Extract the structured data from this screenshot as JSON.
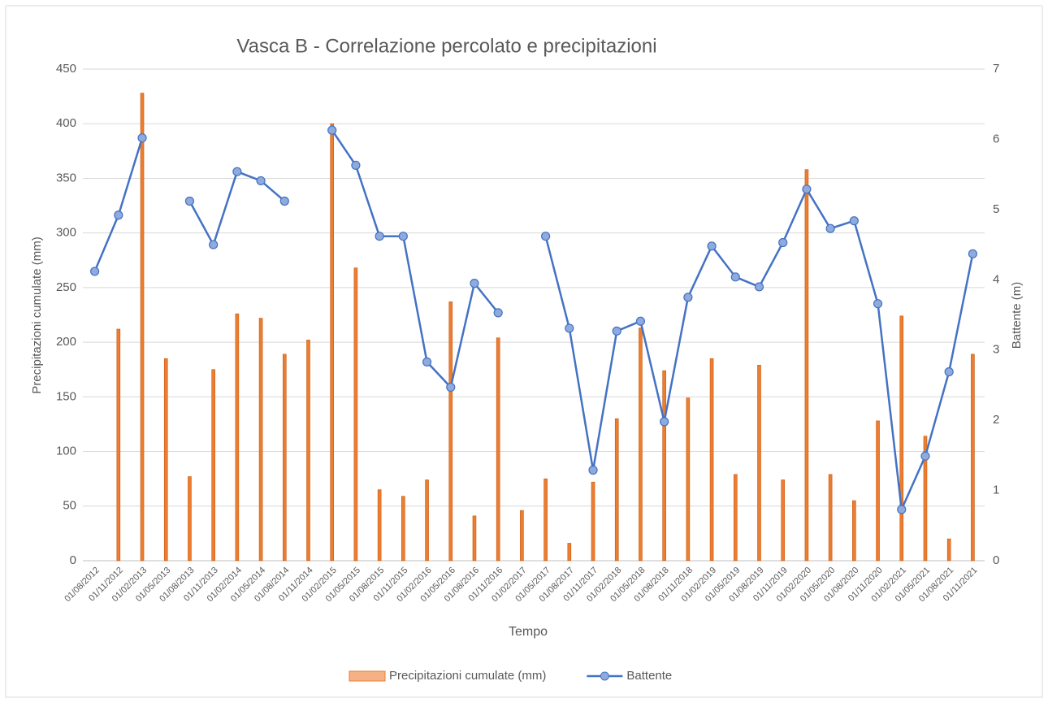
{
  "chart_data": {
    "type": "bar_line",
    "title": "Vasca B - Correlazione percolato e precipitazioni",
    "x_label": "Tempo",
    "y_label": "Precipitazioni cumulate (mm)",
    "y2_label": "Battente (m)",
    "categories": [
      "01/08/2012",
      "01/11/2012",
      "01/02/2013",
      "01/05/2013",
      "01/08/2013",
      "01/11/2013",
      "01/02/2014",
      "01/05/2014",
      "01/08/2014",
      "01/11/2014",
      "01/02/2015",
      "01/05/2015",
      "01/08/2015",
      "01/11/2015",
      "01/02/2016",
      "01/05/2016",
      "01/08/2016",
      "01/11/2016",
      "01/02/2017",
      "01/05/2017",
      "01/08/2017",
      "01/11/2017",
      "01/02/2018",
      "01/05/2018",
      "01/08/2018",
      "01/11/2018",
      "01/02/2019",
      "01/05/2019",
      "01/08/2019",
      "01/11/2019",
      "01/02/2020",
      "01/05/2020",
      "01/08/2020",
      "01/11/2020",
      "01/02/2021",
      "01/05/2021",
      "01/08/2021",
      "01/11/2021"
    ],
    "series": [
      {
        "name": "Precipitazioni cumulate (mm)",
        "type": "bar",
        "color": "#ed7d31",
        "axis": "y",
        "values": [
          null,
          212,
          428,
          185,
          77,
          175,
          226,
          222,
          189,
          202,
          400,
          268,
          65,
          59,
          74,
          237,
          41,
          204,
          46,
          75,
          16,
          72,
          130,
          213,
          174,
          149,
          185,
          79,
          179,
          74,
          358,
          79,
          55,
          128,
          224,
          114,
          20,
          189
        ]
      },
      {
        "name": "Battente",
        "type": "line",
        "color": "#4472c4",
        "axis": "y2",
        "values": [
          4.12,
          4.92,
          6.02,
          null,
          5.12,
          4.5,
          5.54,
          5.41,
          5.12,
          null,
          6.13,
          5.63,
          4.62,
          4.62,
          2.83,
          2.47,
          3.95,
          3.53,
          null,
          4.62,
          3.31,
          1.29,
          3.27,
          3.41,
          1.98,
          3.75,
          4.48,
          4.04,
          3.9,
          4.53,
          5.29,
          4.73,
          4.84,
          3.66,
          0.73,
          1.49,
          2.69,
          4.37
        ]
      }
    ],
    "ylim": [
      0,
      450
    ],
    "yticks": [
      0,
      50,
      100,
      150,
      200,
      250,
      300,
      350,
      400,
      450
    ],
    "y2lim": [
      0,
      7
    ],
    "y2ticks": [
      0,
      1,
      2,
      3,
      4,
      5,
      6,
      7
    ],
    "grid": true,
    "legend": "bottom"
  }
}
